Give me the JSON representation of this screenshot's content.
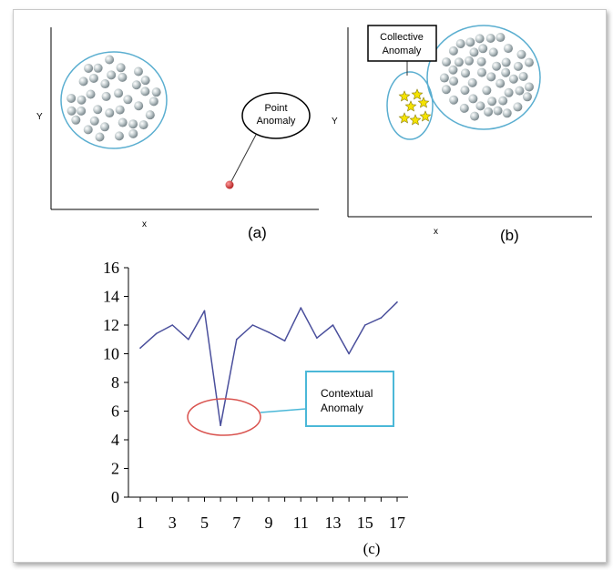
{
  "panel_a": {
    "x_axis_label": "x",
    "y_axis_label": "Y",
    "callout_line1": "Point",
    "callout_line2": "Anomaly",
    "caption": "(a)",
    "point_color": "#d9534f",
    "cluster_outline_color": "#5aaed0"
  },
  "panel_b": {
    "x_axis_label": "x",
    "y_axis_label": "Y",
    "callout_line1": "Collective",
    "callout_line2": "Anomaly",
    "caption": "(b)",
    "star_color": "#f5e300"
  },
  "panel_c": {
    "callout_line1": "Contextual",
    "callout_line2": "Anomaly",
    "caption": "(c)",
    "callout_color": "#4bb8d8",
    "ellipse_color": "#d9534f"
  },
  "chart_data": {
    "type": "line",
    "x": [
      1,
      2,
      3,
      4,
      5,
      6,
      7,
      8,
      9,
      10,
      11,
      12,
      13,
      14,
      15,
      16,
      17
    ],
    "series": [
      {
        "values": [
          10.4,
          11.4,
          12.0,
          11.0,
          13.0,
          5.0,
          11.0,
          12.0,
          11.5,
          10.9,
          13.2,
          11.1,
          12.0,
          10.0,
          12.0,
          12.5,
          13.6
        ],
        "color": "#4a4f9c"
      }
    ],
    "yticks": [
      "0",
      "2",
      "4",
      "6",
      "8",
      "10",
      "12",
      "14",
      "16"
    ],
    "xticks": [
      "1",
      "3",
      "5",
      "7",
      "9",
      "11",
      "13",
      "15",
      "17"
    ],
    "ylim": [
      0,
      16
    ],
    "xlim": [
      1,
      17
    ],
    "grid": false,
    "xlabel": "",
    "ylabel": ""
  }
}
